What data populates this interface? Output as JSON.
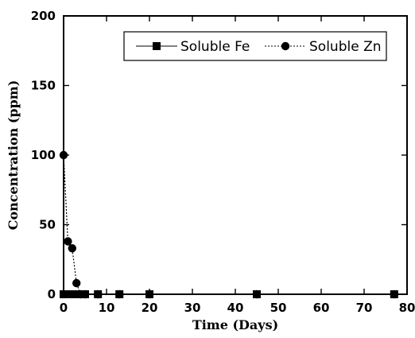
{
  "chart_data": {
    "type": "line",
    "xlabel": "Time (Days)",
    "ylabel": "Concentration (ppm)",
    "xlim": [
      0,
      80
    ],
    "ylim": [
      0,
      200
    ],
    "xticks": [
      0,
      10,
      20,
      30,
      40,
      50,
      60,
      70,
      80
    ],
    "yticks": [
      0,
      50,
      100,
      150,
      200
    ],
    "grid": false,
    "legend_position": "top-right",
    "series": [
      {
        "name": "Soluble Fe",
        "marker": "square",
        "line_style": "solid",
        "color": "#000000",
        "x": [
          0,
          1,
          2,
          3,
          4,
          5,
          8,
          13,
          20,
          45,
          77
        ],
        "y": [
          0,
          0,
          0,
          0,
          0,
          0,
          0,
          0,
          0,
          0,
          0
        ]
      },
      {
        "name": "Soluble Zn",
        "marker": "circle",
        "line_style": "dotted",
        "color": "#000000",
        "x": [
          0,
          1,
          2,
          3,
          4,
          5,
          8,
          13,
          20,
          45,
          77
        ],
        "y": [
          100,
          38,
          33,
          8,
          0,
          0,
          0,
          0,
          0,
          0,
          0
        ]
      }
    ]
  }
}
